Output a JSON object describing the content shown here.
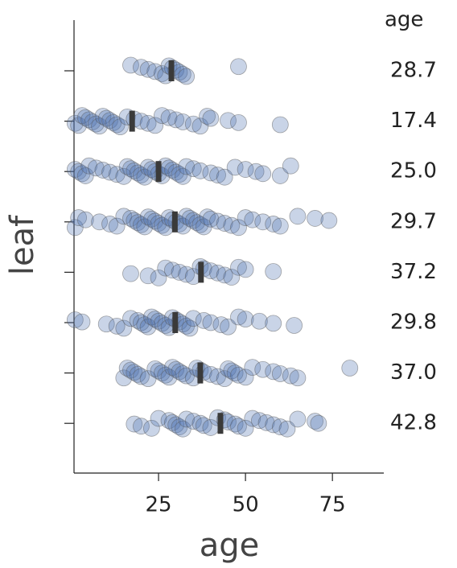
{
  "chart_data": {
    "type": "strip",
    "xlabel": "age",
    "ylabel": "leaf",
    "categories": [
      null,
      null,
      null,
      null,
      null,
      null,
      null,
      null
    ],
    "color": "#4c72b0",
    "xlim": [
      0,
      90
    ],
    "xticks": [
      25,
      50,
      75
    ],
    "points": [
      [
        17,
        20,
        22,
        24,
        26,
        27,
        28,
        29,
        30,
        31,
        32,
        33,
        48
      ],
      [
        1,
        2,
        3,
        4,
        5,
        6,
        7,
        8,
        9,
        10,
        11,
        12,
        13,
        14,
        16,
        18,
        20,
        22,
        24,
        26,
        28,
        30,
        32,
        35,
        37,
        39,
        40,
        45,
        48,
        60
      ],
      [
        1,
        2,
        3,
        4,
        5,
        7,
        9,
        11,
        13,
        15,
        16,
        17,
        18,
        19,
        20,
        21,
        22,
        23,
        24,
        25,
        26,
        27,
        28,
        29,
        30,
        31,
        32,
        33,
        35,
        37,
        40,
        42,
        44,
        47,
        50,
        53,
        55,
        60,
        63
      ],
      [
        1,
        2,
        4,
        8,
        11,
        13,
        15,
        17,
        18,
        19,
        20,
        21,
        22,
        23,
        24,
        25,
        26,
        27,
        28,
        29,
        30,
        31,
        32,
        33,
        34,
        35,
        36,
        37,
        38,
        39,
        40,
        42,
        44,
        46,
        48,
        50,
        52,
        55,
        58,
        60,
        65,
        70,
        74
      ],
      [
        17,
        22,
        25,
        27,
        29,
        31,
        33,
        35,
        37,
        38,
        40,
        42,
        44,
        46,
        48,
        50,
        58
      ],
      [
        1,
        3,
        10,
        13,
        15,
        17,
        19,
        20,
        21,
        22,
        23,
        24,
        25,
        26,
        27,
        28,
        29,
        30,
        31,
        32,
        33,
        34,
        35,
        38,
        40,
        43,
        45,
        48,
        50,
        54,
        58,
        64
      ],
      [
        15,
        16,
        17,
        18,
        19,
        20,
        22,
        24,
        25,
        26,
        27,
        28,
        29,
        30,
        31,
        32,
        33,
        35,
        36,
        37,
        38,
        40,
        42,
        44,
        45,
        46,
        47,
        48,
        50,
        52,
        55,
        58,
        60,
        63,
        65,
        80
      ],
      [
        18,
        20,
        23,
        25,
        28,
        29,
        30,
        31,
        32,
        33,
        35,
        37,
        38,
        40,
        42,
        44,
        45,
        47,
        48,
        50,
        52,
        54,
        56,
        58,
        60,
        62,
        65,
        70,
        71
      ]
    ],
    "summary": {
      "title": "age",
      "values": [
        28.7,
        17.4,
        25.0,
        29.7,
        37.2,
        29.8,
        37.0,
        42.8
      ],
      "value_labels": [
        "28.7",
        "17.4",
        "25.0",
        "29.7",
        "37.2",
        "29.8",
        "37.0",
        "42.8"
      ]
    }
  }
}
